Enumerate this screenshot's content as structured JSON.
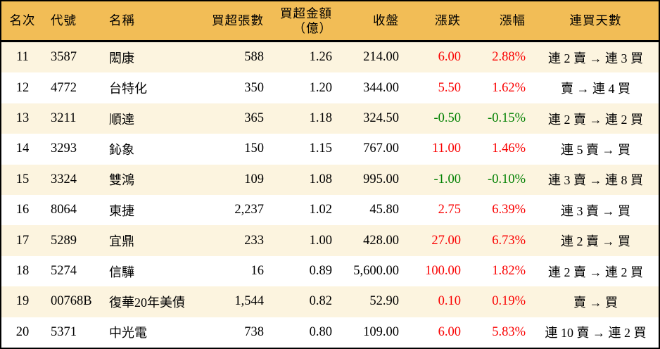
{
  "colors": {
    "header_bg": "#F2BD56",
    "row_alt_bg": "#FCF4DF",
    "row_bg": "#FFFFFF",
    "border": "#000000",
    "up": "#FA0000",
    "down": "#008000",
    "text": "#000000"
  },
  "table": {
    "columns": [
      {
        "key": "rank",
        "label": "名次"
      },
      {
        "key": "code",
        "label": "代號"
      },
      {
        "key": "name",
        "label": "名稱"
      },
      {
        "key": "volume",
        "label": "買超張數"
      },
      {
        "key": "amount",
        "label": "買超金額",
        "sublabel": "（億）"
      },
      {
        "key": "close",
        "label": "收盤"
      },
      {
        "key": "change",
        "label": "漲跌"
      },
      {
        "key": "pct",
        "label": "漲幅"
      },
      {
        "key": "streak",
        "label": "連買天數"
      }
    ],
    "rows": [
      {
        "rank": "11",
        "code": "3587",
        "name": "閎康",
        "volume": "588",
        "amount": "1.26",
        "close": "214.00",
        "change": "6.00",
        "pct": "2.88%",
        "direction": "up",
        "streak": "連 2 賣 → 連 3 買"
      },
      {
        "rank": "12",
        "code": "4772",
        "name": "台特化",
        "volume": "350",
        "amount": "1.20",
        "close": "344.00",
        "change": "5.50",
        "pct": "1.62%",
        "direction": "up",
        "streak": "賣 → 連 4 買"
      },
      {
        "rank": "13",
        "code": "3211",
        "name": "順達",
        "volume": "365",
        "amount": "1.18",
        "close": "324.50",
        "change": "-0.50",
        "pct": "-0.15%",
        "direction": "down",
        "streak": "連 2 賣 → 連 2 買"
      },
      {
        "rank": "14",
        "code": "3293",
        "name": "鈊象",
        "volume": "150",
        "amount": "1.15",
        "close": "767.00",
        "change": "11.00",
        "pct": "1.46%",
        "direction": "up",
        "streak": "連 5 賣 → 買"
      },
      {
        "rank": "15",
        "code": "3324",
        "name": "雙鴻",
        "volume": "109",
        "amount": "1.08",
        "close": "995.00",
        "change": "-1.00",
        "pct": "-0.10%",
        "direction": "down",
        "streak": "連 3 賣 → 連 8 買"
      },
      {
        "rank": "16",
        "code": "8064",
        "name": "東捷",
        "volume": "2,237",
        "amount": "1.02",
        "close": "45.80",
        "change": "2.75",
        "pct": "6.39%",
        "direction": "up",
        "streak": "連 3 賣 → 買"
      },
      {
        "rank": "17",
        "code": "5289",
        "name": "宜鼎",
        "volume": "233",
        "amount": "1.00",
        "close": "428.00",
        "change": "27.00",
        "pct": "6.73%",
        "direction": "up",
        "streak": "連 2 賣 → 買"
      },
      {
        "rank": "18",
        "code": "5274",
        "name": "信驊",
        "volume": "16",
        "amount": "0.89",
        "close": "5,600.00",
        "change": "100.00",
        "pct": "1.82%",
        "direction": "up",
        "streak": "連 2 賣 → 連 2 買"
      },
      {
        "rank": "19",
        "code": "00768B",
        "name": "復華20年美債",
        "volume": "1,544",
        "amount": "0.82",
        "close": "52.90",
        "change": "0.10",
        "pct": "0.19%",
        "direction": "up",
        "streak": "賣 → 買"
      },
      {
        "rank": "20",
        "code": "5371",
        "name": "中光電",
        "volume": "738",
        "amount": "0.80",
        "close": "109.00",
        "change": "6.00",
        "pct": "5.83%",
        "direction": "up",
        "streak": "連 10 賣 → 連 2 買"
      }
    ]
  }
}
